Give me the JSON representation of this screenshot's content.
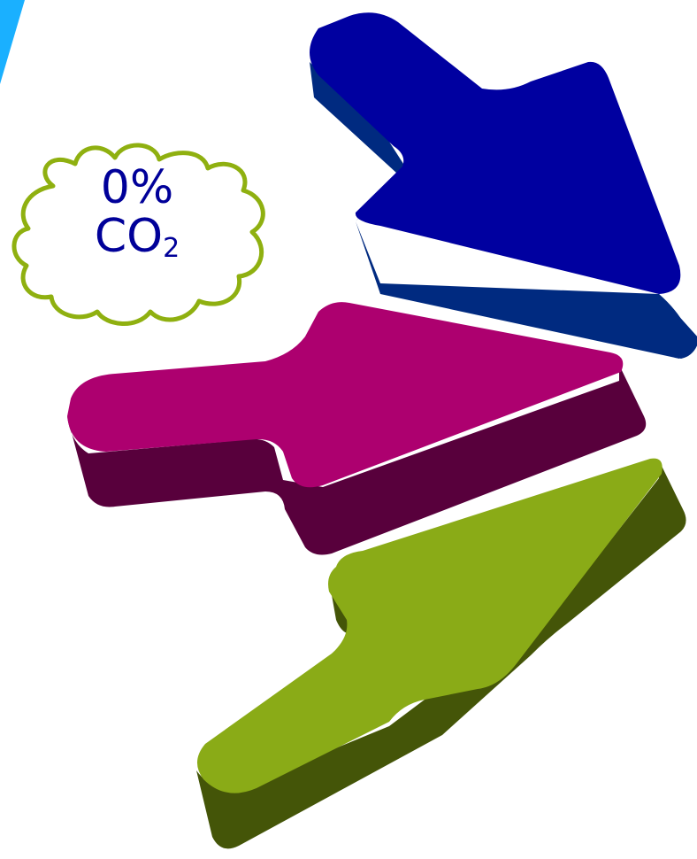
{
  "cloud": {
    "line1": "0%",
    "line2_main": "CO",
    "line2_sub": "2"
  },
  "colors": {
    "background": "#ffffff",
    "corner_accent": "#1ab0ff",
    "cloud_outline": "#8fb010",
    "cloud_text": "#000099",
    "arrow_blue_top": "#0000a0",
    "arrow_blue_side": "#002a80",
    "arrow_magenta_top": "#ad006f",
    "arrow_magenta_side": "#58003c",
    "arrow_green_top": "#8aab17",
    "arrow_green_side": "#445508"
  },
  "icons": {
    "blue_arrow": "arrow-down-right-icon",
    "magenta_arrow": "arrow-right-icon",
    "green_arrow": "arrow-up-right-icon",
    "cloud": "cloud-icon"
  }
}
